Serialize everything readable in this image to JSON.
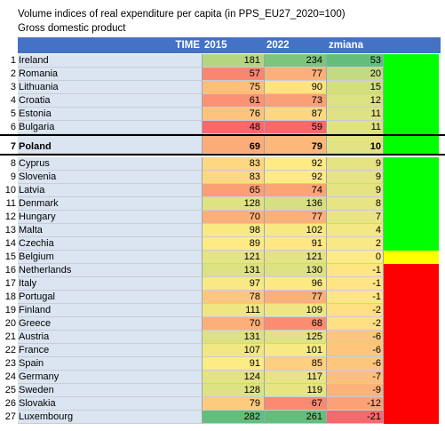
{
  "title": "Volume indices of real expenditure per capita (in PPS_EU27_2020=100)",
  "subtitle": "Gross domestic product",
  "header": {
    "time": "TIME",
    "y2015": "2015",
    "y2022": "2022",
    "change": "zmiana"
  },
  "colors": {
    "header": "#4472c4",
    "country_bg": "#dbe5f1",
    "status_green": "#00ff00",
    "status_yellow": "#ffff00",
    "status_red": "#ff0000"
  },
  "rows": [
    {
      "rank": "1",
      "country": "Ireland",
      "v2015": "181",
      "v2022": "234",
      "change": "53",
      "status": "green"
    },
    {
      "rank": "2",
      "country": "Romania",
      "v2015": "57",
      "v2022": "77",
      "change": "20",
      "status": "green"
    },
    {
      "rank": "3",
      "country": "Lithuania",
      "v2015": "75",
      "v2022": "90",
      "change": "15",
      "status": "green"
    },
    {
      "rank": "4",
      "country": "Croatia",
      "v2015": "61",
      "v2022": "73",
      "change": "12",
      "status": "green"
    },
    {
      "rank": "5",
      "country": "Estonia",
      "v2015": "76",
      "v2022": "87",
      "change": "11",
      "status": "green"
    },
    {
      "rank": "6",
      "country": "Bulgaria",
      "v2015": "48",
      "v2022": "59",
      "change": "11",
      "status": "green"
    },
    {
      "rank": "7",
      "country": "Poland",
      "v2015": "69",
      "v2022": "79",
      "change": "10",
      "status": "green",
      "bold": true
    },
    {
      "rank": "8",
      "country": "Cyprus",
      "v2015": "83",
      "v2022": "92",
      "change": "9",
      "status": "green"
    },
    {
      "rank": "9",
      "country": "Slovenia",
      "v2015": "83",
      "v2022": "92",
      "change": "9",
      "status": "green"
    },
    {
      "rank": "10",
      "country": "Latvia",
      "v2015": "65",
      "v2022": "74",
      "change": "9",
      "status": "green"
    },
    {
      "rank": "11",
      "country": "Denmark",
      "v2015": "128",
      "v2022": "136",
      "change": "8",
      "status": "green"
    },
    {
      "rank": "12",
      "country": "Hungary",
      "v2015": "70",
      "v2022": "77",
      "change": "7",
      "status": "green"
    },
    {
      "rank": "13",
      "country": "Malta",
      "v2015": "98",
      "v2022": "102",
      "change": "4",
      "status": "green"
    },
    {
      "rank": "14",
      "country": "Czechia",
      "v2015": "89",
      "v2022": "91",
      "change": "2",
      "status": "green"
    },
    {
      "rank": "15",
      "country": "Belgium",
      "v2015": "121",
      "v2022": "121",
      "change": "0",
      "status": "yellow"
    },
    {
      "rank": "16",
      "country": "Netherlands",
      "v2015": "131",
      "v2022": "130",
      "change": "-1",
      "status": "red"
    },
    {
      "rank": "17",
      "country": "Italy",
      "v2015": "97",
      "v2022": "96",
      "change": "-1",
      "status": "red"
    },
    {
      "rank": "18",
      "country": "Portugal",
      "v2015": "78",
      "v2022": "77",
      "change": "-1",
      "status": "red"
    },
    {
      "rank": "19",
      "country": "Finland",
      "v2015": "111",
      "v2022": "109",
      "change": "-2",
      "status": "red"
    },
    {
      "rank": "20",
      "country": "Greece",
      "v2015": "70",
      "v2022": "68",
      "change": "-2",
      "status": "red"
    },
    {
      "rank": "21",
      "country": "Austria",
      "v2015": "131",
      "v2022": "125",
      "change": "-6",
      "status": "red"
    },
    {
      "rank": "22",
      "country": "France",
      "v2015": "107",
      "v2022": "101",
      "change": "-6",
      "status": "red"
    },
    {
      "rank": "23",
      "country": "Spain",
      "v2015": "91",
      "v2022": "85",
      "change": "-6",
      "status": "red"
    },
    {
      "rank": "24",
      "country": "Germany",
      "v2015": "124",
      "v2022": "117",
      "change": "-7",
      "status": "red"
    },
    {
      "rank": "25",
      "country": "Sweden",
      "v2015": "128",
      "v2022": "119",
      "change": "-9",
      "status": "red"
    },
    {
      "rank": "26",
      "country": "Slovakia",
      "v2015": "79",
      "v2022": "67",
      "change": "-12",
      "status": "red"
    },
    {
      "rank": "27",
      "country": "Luxembourg",
      "v2015": "282",
      "v2022": "261",
      "change": "-21",
      "status": "red"
    }
  ]
}
